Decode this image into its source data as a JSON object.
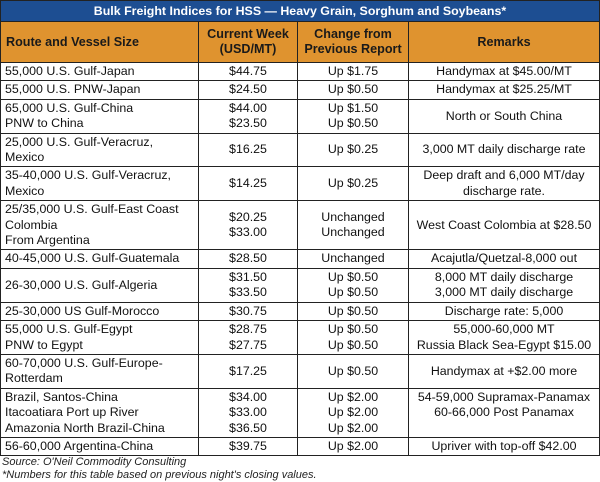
{
  "title": "Bulk Freight Indices for HSS — Heavy Grain, Sorghum and Soybeans*",
  "headers": {
    "route": "Route and Vessel Size",
    "current": [
      "Current Week",
      "(USD/MT)"
    ],
    "change": [
      "Change from",
      "Previous Report"
    ],
    "remarks": "Remarks"
  },
  "rows": [
    {
      "route": [
        "55,000 U.S. Gulf-Japan"
      ],
      "price": [
        "$44.75"
      ],
      "change": [
        "Up $1.75"
      ],
      "remarks": [
        "Handymax at $45.00/MT"
      ]
    },
    {
      "route": [
        "55,000 U.S. PNW-Japan"
      ],
      "price": [
        "$24.50"
      ],
      "change": [
        "Up $0.50"
      ],
      "remarks": [
        "Handymax at $25.25/MT"
      ]
    },
    {
      "route": [
        "65,000 U.S. Gulf-China",
        "PNW to China"
      ],
      "price": [
        "$44.00",
        "$23.50"
      ],
      "change": [
        "Up $1.50",
        "Up $0.50"
      ],
      "remarks": [
        "North or South China"
      ]
    },
    {
      "route": [
        "25,000 U.S. Gulf-Veracruz,",
        "Mexico"
      ],
      "price": [
        "$16.25"
      ],
      "change": [
        "Up $0.25"
      ],
      "remarks": [
        "3,000 MT daily discharge rate"
      ]
    },
    {
      "route": [
        "35-40,000 U.S. Gulf-Veracruz,",
        "Mexico"
      ],
      "price": [
        "$14.25"
      ],
      "change": [
        "Up $0.25"
      ],
      "remarks": [
        "Deep draft and 6,000 MT/day",
        "discharge rate."
      ]
    },
    {
      "route": [
        "25/35,000 U.S. Gulf-East Coast",
        "Colombia",
        "From Argentina"
      ],
      "price": [
        "$20.25",
        "$33.00"
      ],
      "change": [
        "Unchanged",
        "Unchanged"
      ],
      "remarks": [
        "West Coast Colombia at $28.50"
      ]
    },
    {
      "route": [
        "40-45,000 U.S. Gulf-Guatemala"
      ],
      "price": [
        "$28.50"
      ],
      "change": [
        "Unchanged"
      ],
      "remarks": [
        "Acajutla/Quetzal-8,000 out"
      ]
    },
    {
      "route": [
        "26-30,000 U.S. Gulf-Algeria"
      ],
      "price": [
        "$31.50",
        "$33.50"
      ],
      "change": [
        "Up $0.50",
        "Up $0.50"
      ],
      "remarks": [
        "8,000 MT daily discharge",
        "3,000 MT daily discharge"
      ]
    },
    {
      "route": [
        "25-30,000 US Gulf-Morocco"
      ],
      "price": [
        "$30.75"
      ],
      "change": [
        "Up $0.50"
      ],
      "remarks": [
        "Discharge rate: 5,000"
      ]
    },
    {
      "route": [
        "55,000 U.S. Gulf-Egypt",
        "PNW to Egypt"
      ],
      "price": [
        "$28.75",
        "$27.75"
      ],
      "change": [
        "Up $0.50",
        "Up $0.50"
      ],
      "remarks": [
        "55,000-60,000 MT",
        "Russia Black Sea-Egypt $15.00"
      ]
    },
    {
      "route": [
        "60-70,000 U.S. Gulf-Europe-",
        "Rotterdam"
      ],
      "price": [
        "$17.25"
      ],
      "change": [
        "Up $0.50"
      ],
      "remarks": [
        "Handymax at +$2.00 more"
      ]
    },
    {
      "route": [
        "Brazil, Santos-China",
        "Itacoatiara Port up River",
        "Amazonia North Brazil-China"
      ],
      "price": [
        "$34.00",
        "$33.00",
        "$36.50"
      ],
      "change": [
        "Up $2.00",
        "Up $2.00",
        "Up $2.00"
      ],
      "remarks": [
        "54-59,000 Supramax-Panamax",
        "60-66,000 Post Panamax"
      ],
      "remarks_top": true
    },
    {
      "route": [
        "56-60,000 Argentina-China"
      ],
      "price": [
        "$39.75"
      ],
      "change": [
        "Up $2.00"
      ],
      "remarks": [
        "Upriver with top-off $42.00"
      ]
    }
  ],
  "footnotes": {
    "source": "Source: O'Neil Commodity Consulting",
    "note": "*Numbers for this table based on previous night's closing values."
  },
  "colors": {
    "title_bg": "#1d4e92",
    "header_bg": "#df932f"
  }
}
